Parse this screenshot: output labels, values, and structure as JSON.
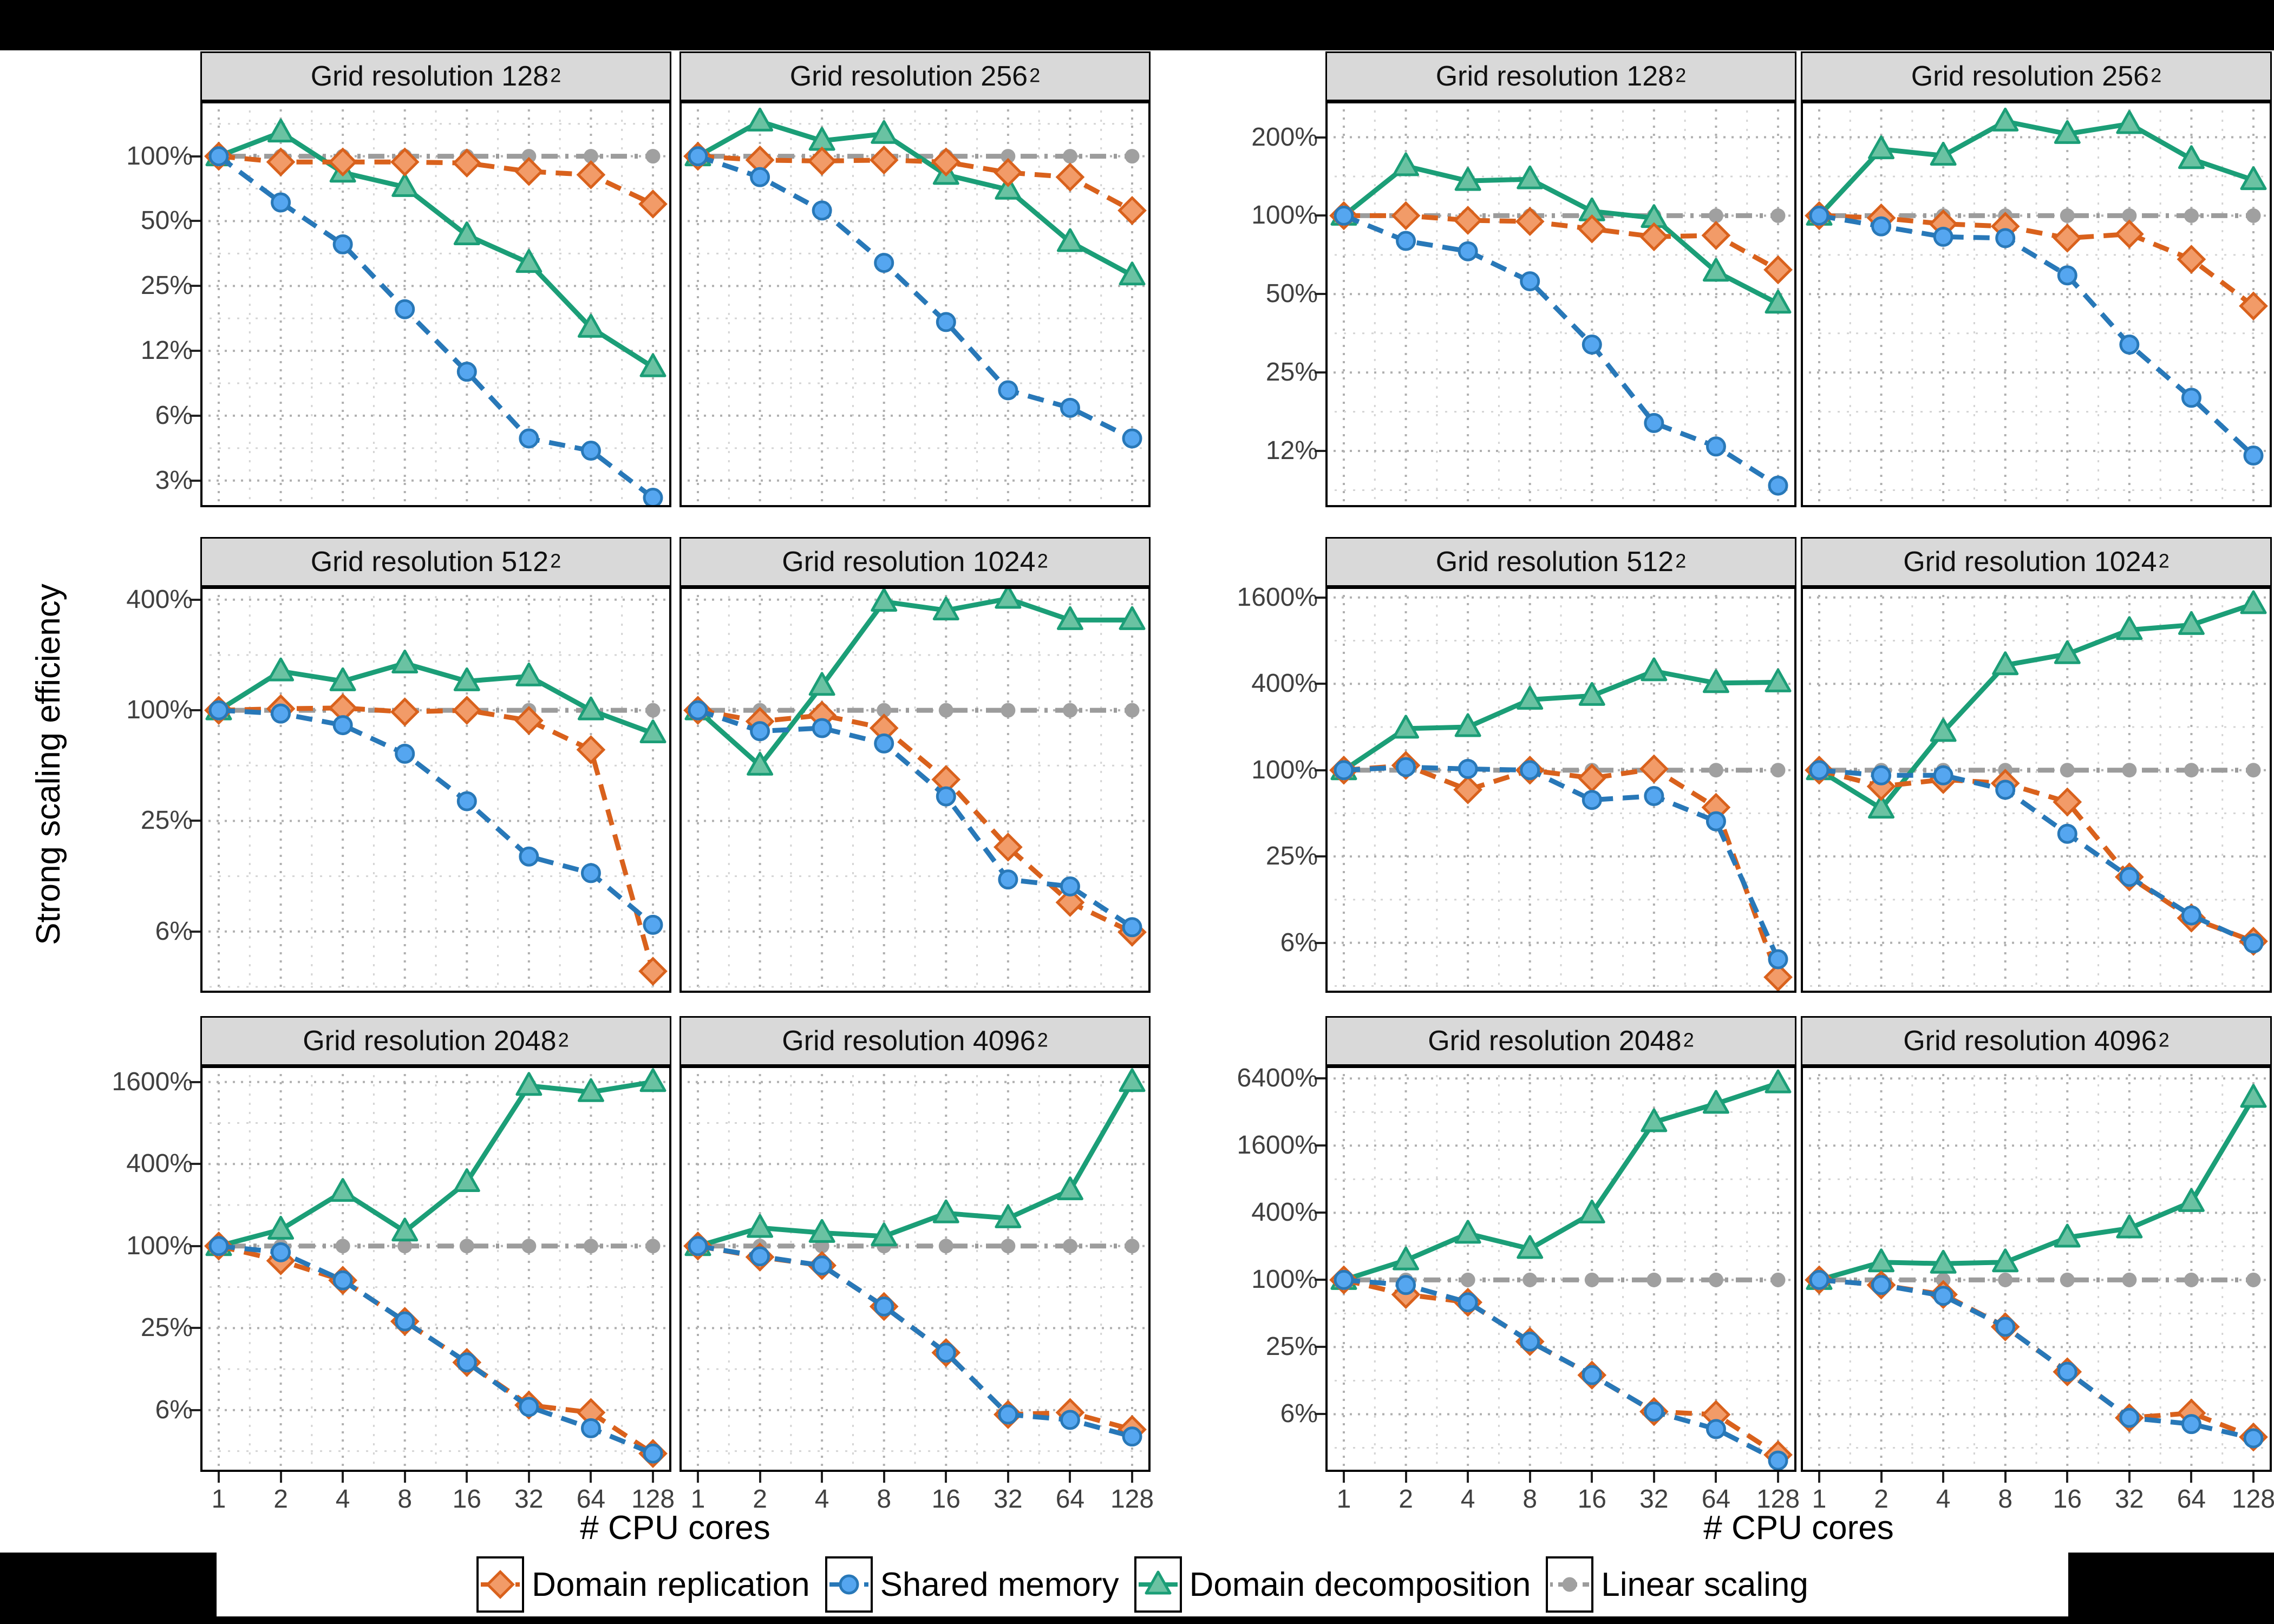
{
  "page": {
    "ylabel": "Strong scaling efficiency",
    "xlabel": "# CPU cores",
    "background": "#ffffff",
    "frame_color": "#000000",
    "strip_background": "#D9D9D9",
    "grid_major_color": "#B0B0B0",
    "grid_minor_color": "#D4D4D4"
  },
  "legend": {
    "items": [
      {
        "label": "Domain replication",
        "marker": "diamond",
        "line": "dashed",
        "color": "#D9611C",
        "fill": "#F29B68"
      },
      {
        "label": "Shared memory",
        "marker": "circle",
        "line": "dashed",
        "color": "#2878B8",
        "fill": "#55A6F0"
      },
      {
        "label": "Domain decomposition",
        "marker": "triangle",
        "line": "solid",
        "color": "#1B9E77",
        "fill": "#6AC2A2"
      },
      {
        "label": "Linear scaling",
        "marker": "circle-small",
        "line": "dashdot",
        "color": "#9C9C9C",
        "fill": "#A0A0A0"
      }
    ]
  },
  "chart_data": {
    "type": "line",
    "yscale": "log2",
    "xlabel": "# CPU cores",
    "ylabel": "Strong scaling efficiency",
    "x": [
      1,
      2,
      4,
      8,
      16,
      32,
      64,
      128
    ],
    "x_labels": [
      "1",
      "2",
      "4",
      "8",
      "16",
      "32",
      "64",
      "128"
    ],
    "series_names": [
      "Domain replication",
      "Shared memory",
      "Domain decomposition",
      "Linear scaling"
    ],
    "legend_position": "bottom",
    "grid": true,
    "groups": [
      {
        "rows": [
          {
            "ylim": [
              2.35,
              180
            ],
            "yticks": [
              {
                "v": 100,
                "label": "100%"
              },
              {
                "v": 50,
                "label": "50%"
              },
              {
                "v": 25,
                "label": "25%"
              },
              {
                "v": 12.5,
                "label": "12%"
              },
              {
                "v": 6.25,
                "label": "6%"
              },
              {
                "v": 3.125,
                "label": "3%"
              }
            ],
            "panels": [
              {
                "title": "Grid resolution 128",
                "sup": "2",
                "series": [
                  [
                    100,
                    94,
                    94,
                    94,
                    93,
                    85,
                    82,
                    60
                  ],
                  [
                    100,
                    61,
                    39,
                    19.5,
                    10,
                    4.9,
                    4.3,
                    2.6
                  ],
                  [
                    100,
                    129,
                    84,
                    72,
                    43,
                    32,
                    16,
                    10.5
                  ],
                  [
                    100,
                    100,
                    100,
                    100,
                    100,
                    100,
                    100,
                    100
                  ]
                ]
              },
              {
                "title": "Grid resolution 256",
                "sup": "2",
                "series": [
                  [
                    100,
                    96,
                    95,
                    96,
                    94,
                    84,
                    80,
                    56
                  ],
                  [
                    100,
                    80,
                    56,
                    32,
                    17,
                    8.2,
                    6.8,
                    4.9
                  ],
                  [
                    100,
                    145,
                    118,
                    127,
                    82,
                    70,
                    40,
                    28
                  ],
                  [
                    100,
                    100,
                    100,
                    100,
                    100,
                    100,
                    100,
                    100
                  ]
                ]
              }
            ]
          },
          {
            "ylim": [
              2.9,
              470
            ],
            "yticks": [
              {
                "v": 400,
                "label": "400%"
              },
              {
                "v": 100,
                "label": "100%"
              },
              {
                "v": 25,
                "label": "25%"
              },
              {
                "v": 6.25,
                "label": "6%"
              }
            ],
            "panels": [
              {
                "title": "Grid resolution 512",
                "sup": "2",
                "series": [
                  [
                    100,
                    102,
                    103,
                    98,
                    100,
                    88,
                    61,
                    3.8
                  ],
                  [
                    100,
                    96,
                    83,
                    58,
                    32,
                    16,
                    13,
                    6.8
                  ],
                  [
                    100,
                    163,
                    144,
                    180,
                    144,
                    153,
                    100,
                    75
                  ],
                  [
                    100,
                    100,
                    100,
                    100,
                    100,
                    100,
                    100,
                    100
                  ]
                ]
              },
              {
                "title": "Grid resolution 1024",
                "sup": "2",
                "series": [
                  [
                    100,
                    87,
                    94,
                    80,
                    42,
                    18,
                    9,
                    6.2
                  ],
                  [
                    100,
                    77,
                    80,
                    66,
                    34,
                    12,
                    11,
                    6.6
                  ],
                  [
                    100,
                    50,
                    136,
                    390,
                    350,
                    405,
                    310,
                    310
                  ],
                  [
                    100,
                    100,
                    100,
                    100,
                    100,
                    100,
                    100,
                    100
                  ]
                ]
              }
            ]
          },
          {
            "ylim": [
              2.2,
              2100
            ],
            "yticks": [
              {
                "v": 1600,
                "label": "1600%"
              },
              {
                "v": 400,
                "label": "400%"
              },
              {
                "v": 100,
                "label": "100%"
              },
              {
                "v": 25,
                "label": "25%"
              },
              {
                "v": 6.25,
                "label": "6%"
              }
            ],
            "panels": [
              {
                "title": "Grid resolution 2048",
                "sup": "2",
                "series": [
                  [
                    100,
                    78,
                    56,
                    28,
                    14,
                    6.8,
                    6.0,
                    3.0
                  ],
                  [
                    100,
                    90,
                    56,
                    28,
                    14,
                    6.6,
                    4.6,
                    3.0
                  ],
                  [
                    100,
                    132,
                    250,
                    128,
                    295,
                    1500,
                    1350,
                    1600
                  ],
                  [
                    100,
                    100,
                    100,
                    100,
                    100,
                    100,
                    100,
                    100
                  ]
                ]
              },
              {
                "title": "Grid resolution 4096",
                "sup": "2",
                "series": [
                  [
                    100,
                    83,
                    72,
                    36,
                    16.5,
                    5.8,
                    6.0,
                    4.5
                  ],
                  [
                    100,
                    84,
                    72,
                    36,
                    16.5,
                    5.8,
                    5.3,
                    4.0
                  ],
                  [
                    100,
                    136,
                    125,
                    118,
                    174,
                    160,
                    257,
                    1600
                  ],
                  [
                    100,
                    100,
                    100,
                    100,
                    100,
                    100,
                    100,
                    100
                  ]
                ]
              }
            ]
          }
        ]
      },
      {
        "rows": [
          {
            "ylim": [
              7.6,
              275
            ],
            "yticks": [
              {
                "v": 200,
                "label": "200%"
              },
              {
                "v": 100,
                "label": "100%"
              },
              {
                "v": 50,
                "label": "50%"
              },
              {
                "v": 25,
                "label": "25%"
              },
              {
                "v": 12.5,
                "label": "12%"
              }
            ],
            "panels": [
              {
                "title": "Grid resolution 128",
                "sup": "2",
                "series": [
                  [
                    100,
                    100,
                    96,
                    95,
                    89,
                    83,
                    84,
                    62
                  ],
                  [
                    100,
                    80,
                    73,
                    56,
                    32,
                    16,
                    13,
                    9.2
                  ],
                  [
                    100,
                    155,
                    136,
                    138,
                    104,
                    98,
                    61,
                    46
                  ],
                  [
                    100,
                    100,
                    100,
                    100,
                    100,
                    100,
                    100,
                    100
                  ]
                ]
              },
              {
                "title": "Grid resolution 256",
                "sup": "2",
                "series": [
                  [
                    100,
                    98,
                    93,
                    91,
                    82,
                    85,
                    68,
                    45
                  ],
                  [
                    100,
                    91,
                    83,
                    82,
                    59,
                    32,
                    20,
                    12
                  ],
                  [
                    100,
                    180,
                    170,
                    230,
                    206,
                    225,
                    165,
                    137
                  ],
                  [
                    100,
                    100,
                    100,
                    100,
                    100,
                    100,
                    100,
                    100
                  ]
                ]
              }
            ]
          },
          {
            "ylim": [
              2.8,
              1900
            ],
            "yticks": [
              {
                "v": 1600,
                "label": "1600%"
              },
              {
                "v": 400,
                "label": "400%"
              },
              {
                "v": 100,
                "label": "100%"
              },
              {
                "v": 25,
                "label": "25%"
              },
              {
                "v": 6.25,
                "label": "6%"
              }
            ],
            "panels": [
              {
                "title": "Grid resolution 512",
                "sup": "2",
                "series": [
                  [
                    100,
                    108,
                    73,
                    100,
                    88,
                    102,
                    55,
                    3.6
                  ],
                  [
                    100,
                    105,
                    102,
                    100,
                    62,
                    66,
                    44,
                    4.8
                  ],
                  [
                    100,
                    195,
                    200,
                    310,
                    330,
                    490,
                    405,
                    410
                  ],
                  [
                    100,
                    100,
                    100,
                    100,
                    100,
                    100,
                    100,
                    100
                  ]
                ]
              },
              {
                "title": "Grid resolution 1024",
                "sup": "2",
                "series": [
                  [
                    100,
                    77,
                    86,
                    81,
                    60,
                    18,
                    9.3,
                    6.4
                  ],
                  [
                    100,
                    92,
                    92,
                    73,
                    36,
                    18,
                    9.7,
                    6.2
                  ],
                  [
                    100,
                    54,
                    185,
                    540,
                    645,
                    950,
                    1030,
                    1440
                  ],
                  [
                    100,
                    100,
                    100,
                    100,
                    100,
                    100,
                    100,
                    100
                  ]
                ]
              }
            ]
          },
          {
            "ylim": [
              1.9,
              8300
            ],
            "yticks": [
              {
                "v": 6400,
                "label": "6400%"
              },
              {
                "v": 1600,
                "label": "1600%"
              },
              {
                "v": 400,
                "label": "400%"
              },
              {
                "v": 100,
                "label": "100%"
              },
              {
                "v": 25,
                "label": "25%"
              },
              {
                "v": 6.25,
                "label": "6%"
              }
            ],
            "panels": [
              {
                "title": "Grid resolution 2048",
                "sup": "2",
                "series": [
                  [
                    100,
                    74,
                    63,
                    28,
                    14,
                    6.6,
                    6.2,
                    2.7
                  ],
                  [
                    100,
                    90,
                    63,
                    28,
                    14,
                    6.6,
                    4.6,
                    2.4
                  ],
                  [
                    100,
                    150,
                    260,
                    190,
                    395,
                    2600,
                    3800,
                    5800
                  ],
                  [
                    100,
                    100,
                    100,
                    100,
                    100,
                    100,
                    100,
                    100
                  ]
                ]
              },
              {
                "title": "Grid resolution 4096",
                "sup": "2",
                "series": [
                  [
                    100,
                    90,
                    74,
                    38,
                    15,
                    5.8,
                    6.4,
                    3.9
                  ],
                  [
                    100,
                    90,
                    72,
                    38,
                    15,
                    5.8,
                    5.1,
                    3.8
                  ],
                  [
                    100,
                    144,
                    140,
                    144,
                    240,
                    290,
                    500,
                    4300
                  ],
                  [
                    100,
                    100,
                    100,
                    100,
                    100,
                    100,
                    100,
                    100
                  ]
                ]
              }
            ]
          }
        ]
      }
    ]
  }
}
